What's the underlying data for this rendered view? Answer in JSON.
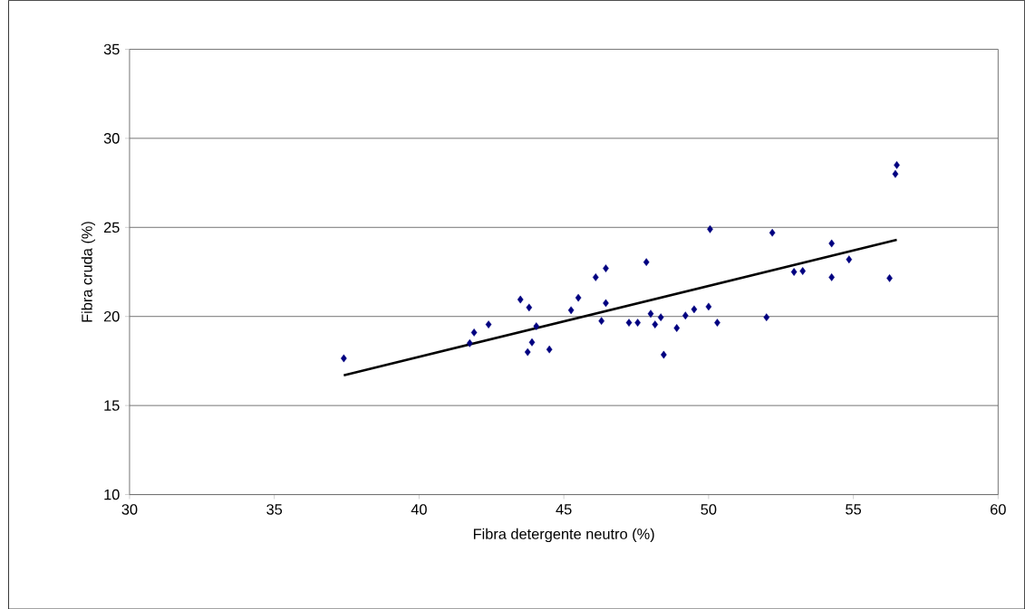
{
  "chart_data": {
    "type": "scatter",
    "xlabel": "Fibra detergente neutro (%)",
    "ylabel": "Fibra cruda (%)",
    "xlim": [
      30,
      60
    ],
    "xticks": [
      30,
      35,
      40,
      45,
      50,
      55,
      60
    ],
    "ylim": [
      10,
      35
    ],
    "yticks": [
      10,
      15,
      20,
      25,
      30,
      35
    ],
    "grid": "y",
    "marker": "diamond",
    "series": [
      {
        "color": "#000080",
        "x": [
          37.4,
          41.75,
          41.9,
          42.4,
          43.5,
          43.8,
          44.05,
          43.9,
          43.75,
          44.5,
          45.25,
          45.5,
          46.45,
          46.3,
          46.1,
          46.45,
          47.85,
          47.25,
          47.55,
          48.0,
          48.15,
          48.35,
          48.45,
          48.9,
          49.2,
          49.5,
          50.05,
          50.0,
          50.3,
          52.0,
          52.2,
          52.95,
          53.25,
          54.25,
          54.25,
          54.85,
          56.5,
          56.45,
          56.25
        ],
        "values": [
          17.65,
          18.5,
          19.1,
          19.55,
          20.95,
          20.5,
          19.45,
          18.55,
          18.0,
          18.15,
          20.35,
          21.05,
          20.75,
          19.75,
          22.2,
          22.7,
          23.05,
          19.65,
          19.65,
          20.15,
          19.55,
          19.95,
          17.85,
          19.35,
          20.05,
          20.4,
          24.9,
          20.55,
          19.65,
          19.95,
          24.7,
          22.5,
          22.55,
          24.1,
          22.2,
          23.2,
          28.5,
          28.0,
          22.15
        ]
      },
      {
        "type": "line",
        "color": "#000000",
        "marker": "none",
        "x": [
          37.4,
          56.5
        ],
        "values": [
          16.7,
          24.3
        ]
      }
    ]
  }
}
